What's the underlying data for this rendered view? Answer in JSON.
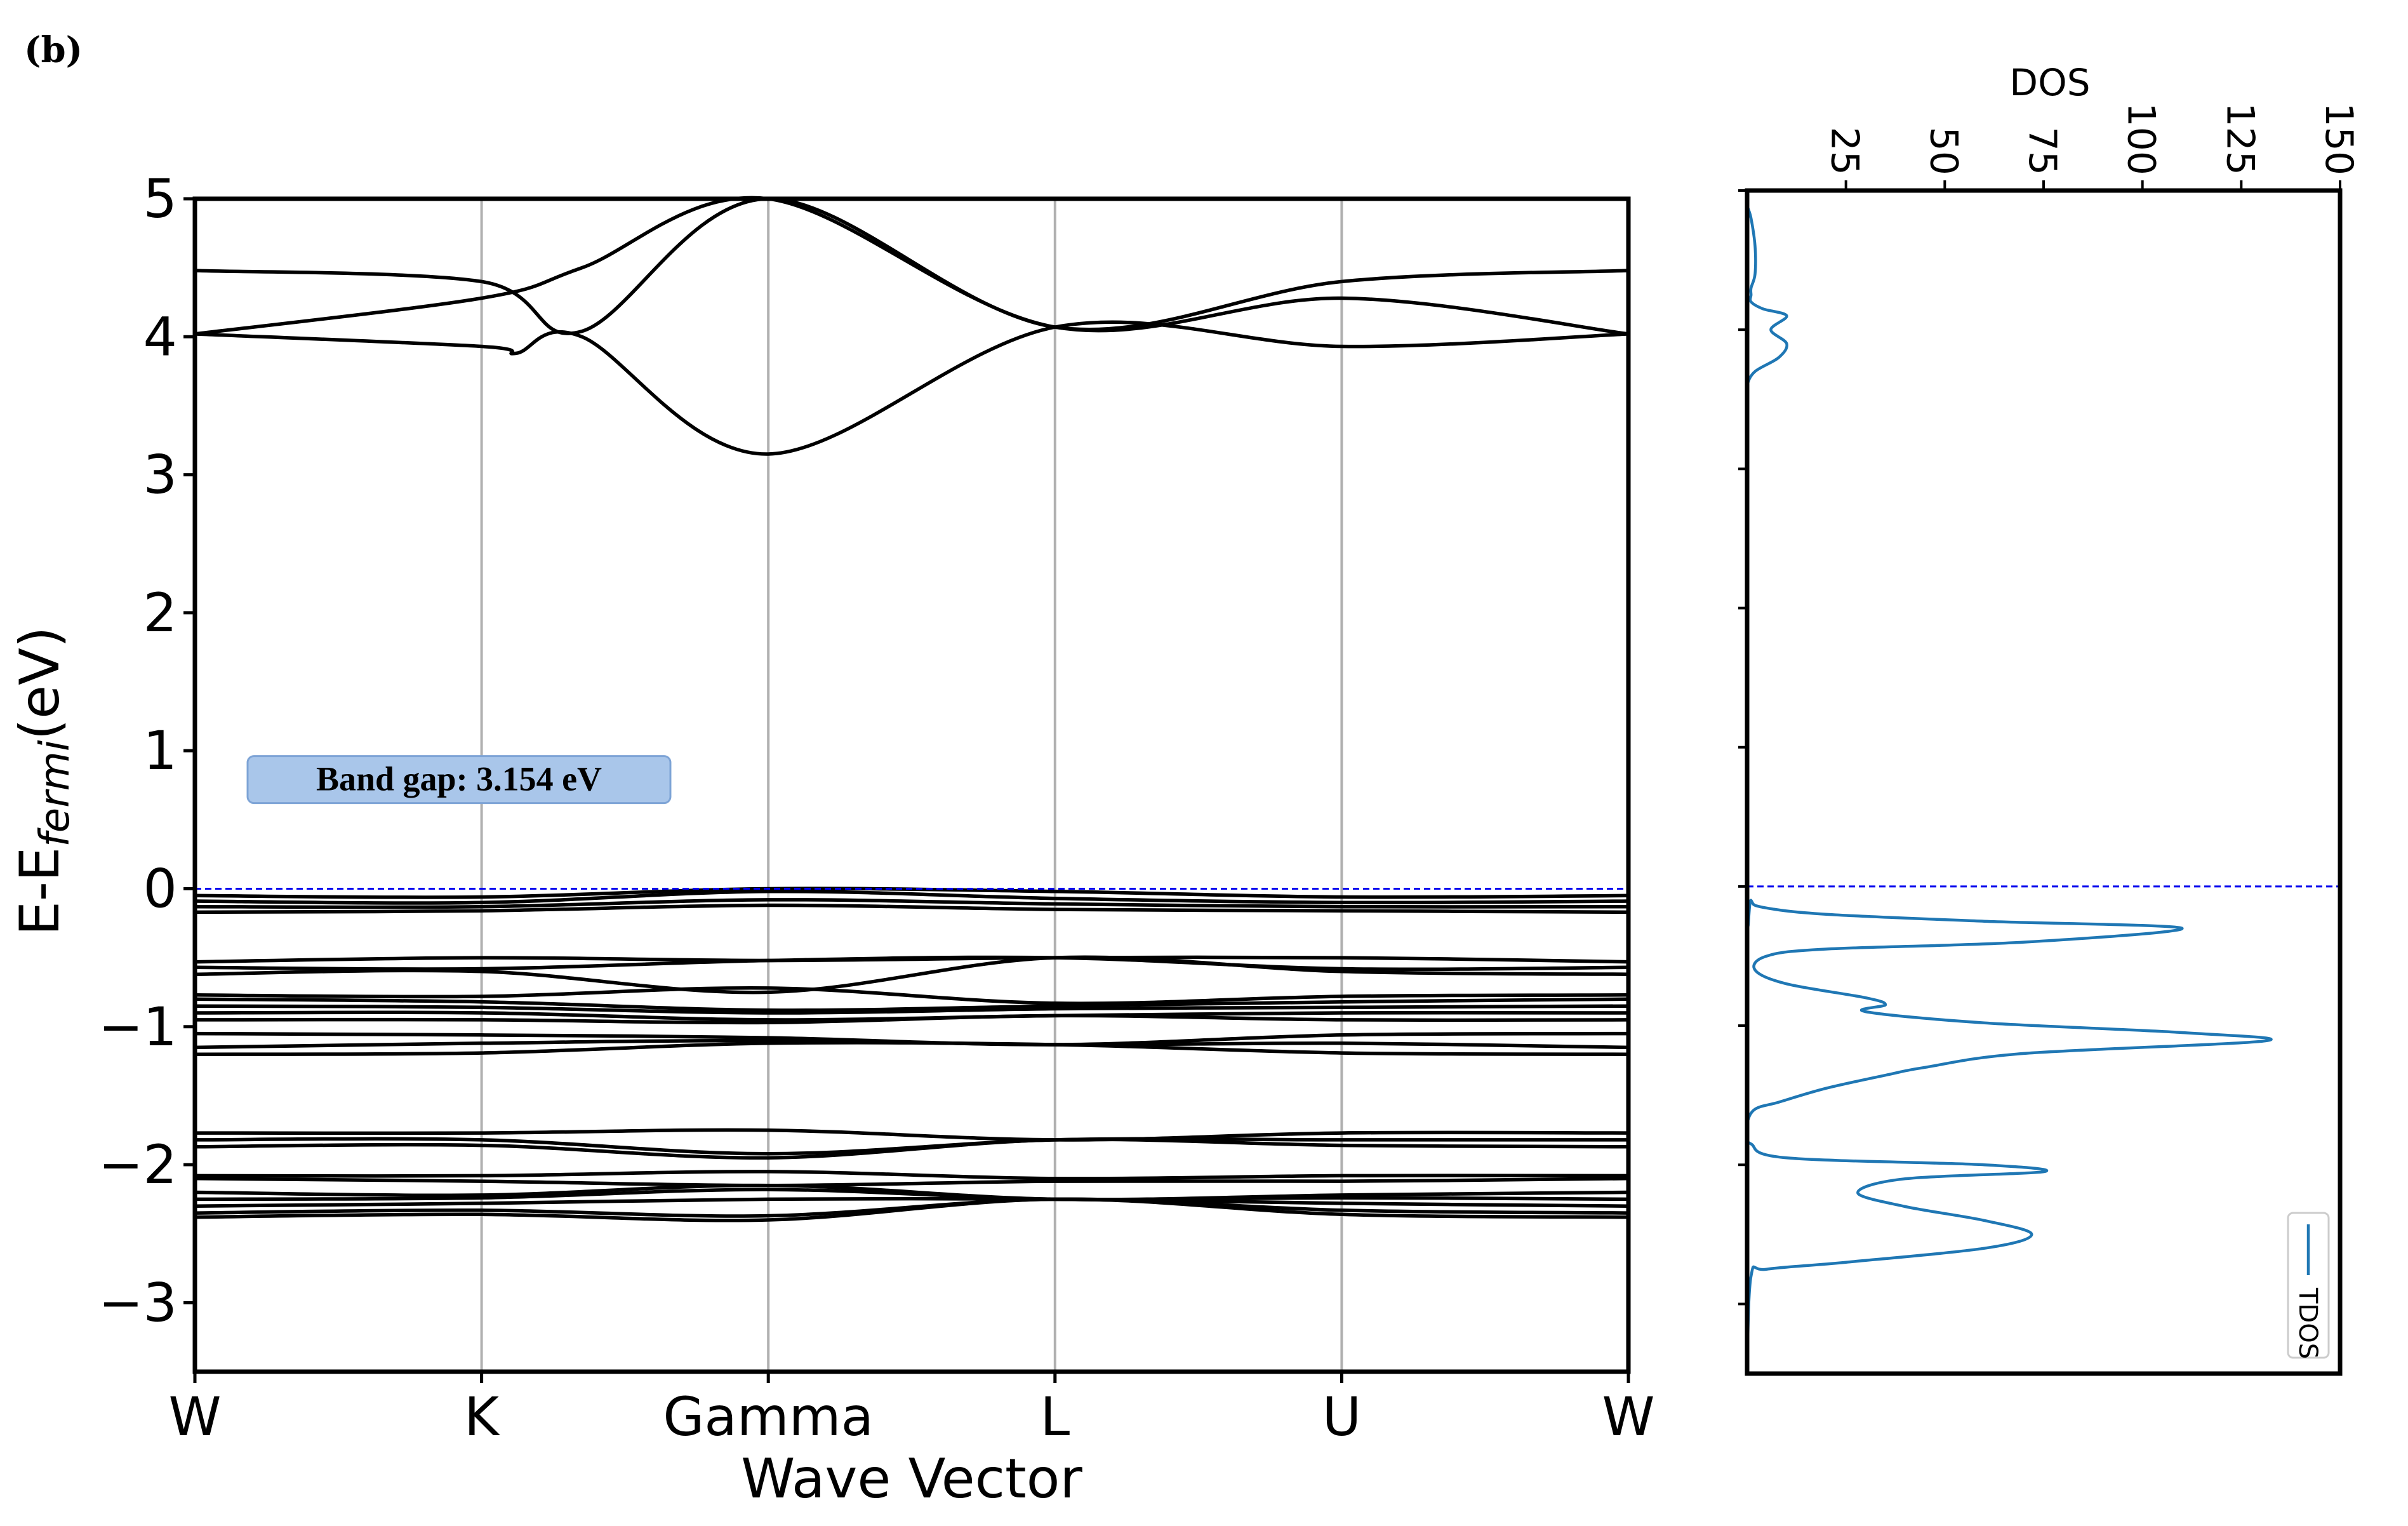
{
  "figure": {
    "panel_label": "(b)"
  },
  "chart_data": [
    {
      "type": "line",
      "panel": "band-structure",
      "xlabel": "Wave Vector",
      "ylabel_main": "E-E",
      "ylabel_sub": "fermi",
      "ylabel_unit": "(eV)",
      "ylim": [
        -3.5,
        5
      ],
      "yticks": [
        5,
        4,
        3,
        2,
        1,
        0,
        -1,
        -2,
        -3
      ],
      "ytick_labels": [
        "5",
        "4",
        "3",
        "2",
        "1",
        "0",
        "−1",
        "−2",
        "−3"
      ],
      "kpoints": [
        "W",
        "K",
        "Gamma",
        "L",
        "U",
        "W"
      ],
      "kpoint_positions": [
        0,
        1,
        2,
        3,
        4,
        5
      ],
      "grid": "vertical lines at high-symmetry points",
      "fermi_level": 0,
      "annotation": {
        "text": "Band gap:  3.154 eV",
        "x": 0.19,
        "y": 0.8
      },
      "bands": [
        {
          "x": [
            0,
            1,
            1.35,
            2,
            3,
            4,
            5
          ],
          "y": [
            4.02,
            4.28,
            4.5,
            5.0,
            4.07,
            4.28,
            4.02
          ]
        },
        {
          "x": [
            0,
            1,
            1.35,
            2,
            3,
            4,
            5
          ],
          "y": [
            4.48,
            4.4,
            4.04,
            5.0,
            4.07,
            4.4,
            4.48
          ]
        },
        {
          "x": [
            0,
            1,
            1.12,
            1.35,
            2,
            3,
            4,
            5
          ],
          "y": [
            4.02,
            3.93,
            3.88,
            4.0,
            3.15,
            4.07,
            3.93,
            4.02
          ]
        },
        {
          "x": [
            0,
            1,
            2,
            3,
            4,
            5
          ],
          "y": [
            -0.05,
            -0.06,
            0.0,
            -0.02,
            -0.06,
            -0.05
          ]
        },
        {
          "x": [
            0,
            1,
            2,
            3,
            4,
            5
          ],
          "y": [
            -0.09,
            -0.1,
            -0.02,
            -0.07,
            -0.1,
            -0.09
          ]
        },
        {
          "x": [
            0,
            1,
            2,
            3,
            4,
            5
          ],
          "y": [
            -0.13,
            -0.13,
            -0.08,
            -0.11,
            -0.13,
            -0.13
          ]
        },
        {
          "x": [
            0,
            1,
            2,
            3,
            4,
            5
          ],
          "y": [
            -0.17,
            -0.16,
            -0.12,
            -0.15,
            -0.16,
            -0.17
          ]
        },
        {
          "x": [
            0,
            1,
            2,
            3,
            4,
            5
          ],
          "y": [
            -0.53,
            -0.5,
            -0.52,
            -0.5,
            -0.5,
            -0.53
          ]
        },
        {
          "x": [
            0,
            1,
            2,
            3,
            4,
            5
          ],
          "y": [
            -0.57,
            -0.58,
            -0.52,
            -0.5,
            -0.58,
            -0.57
          ]
        },
        {
          "x": [
            0,
            1,
            2,
            3,
            4,
            5
          ],
          "y": [
            -0.62,
            -0.6,
            -0.75,
            -0.5,
            -0.6,
            -0.62
          ]
        },
        {
          "x": [
            0,
            1,
            2,
            3,
            4,
            5
          ],
          "y": [
            -0.77,
            -0.78,
            -0.72,
            -0.83,
            -0.78,
            -0.77
          ]
        },
        {
          "x": [
            0,
            1,
            2,
            3,
            4,
            5
          ],
          "y": [
            -0.8,
            -0.82,
            -0.88,
            -0.85,
            -0.82,
            -0.8
          ]
        },
        {
          "x": [
            0,
            1,
            2,
            3,
            4,
            5
          ],
          "y": [
            -0.85,
            -0.86,
            -0.9,
            -0.87,
            -0.86,
            -0.85
          ]
        },
        {
          "x": [
            0,
            1,
            2,
            3,
            4,
            5
          ],
          "y": [
            -0.9,
            -0.9,
            -0.95,
            -0.92,
            -0.9,
            -0.9
          ]
        },
        {
          "x": [
            0,
            1,
            2,
            3,
            4,
            5
          ],
          "y": [
            -0.95,
            -0.95,
            -0.97,
            -0.92,
            -0.95,
            -0.95
          ]
        },
        {
          "x": [
            0,
            1,
            2,
            3,
            4,
            5
          ],
          "y": [
            -1.05,
            -1.06,
            -1.08,
            -1.13,
            -1.06,
            -1.05
          ]
        },
        {
          "x": [
            0,
            1,
            2,
            3,
            4,
            5
          ],
          "y": [
            -1.15,
            -1.12,
            -1.1,
            -1.13,
            -1.12,
            -1.15
          ]
        },
        {
          "x": [
            0,
            1,
            2,
            3,
            4,
            5
          ],
          "y": [
            -1.2,
            -1.19,
            -1.12,
            -1.13,
            -1.19,
            -1.2
          ]
        },
        {
          "x": [
            0,
            1,
            2,
            3,
            4,
            5
          ],
          "y": [
            -1.77,
            -1.77,
            -1.75,
            -1.82,
            -1.77,
            -1.77
          ]
        },
        {
          "x": [
            0,
            1,
            2,
            3,
            4,
            5
          ],
          "y": [
            -1.82,
            -1.82,
            -1.92,
            -1.82,
            -1.82,
            -1.82
          ]
        },
        {
          "x": [
            0,
            1,
            2,
            3,
            4,
            5
          ],
          "y": [
            -1.87,
            -1.86,
            -1.95,
            -1.82,
            -1.86,
            -1.87
          ]
        },
        {
          "x": [
            0,
            1,
            2,
            3,
            4,
            5
          ],
          "y": [
            -2.08,
            -2.08,
            -2.05,
            -2.1,
            -2.08,
            -2.08
          ]
        },
        {
          "x": [
            0,
            1,
            2,
            3,
            4,
            5
          ],
          "y": [
            -2.1,
            -2.12,
            -2.15,
            -2.12,
            -2.12,
            -2.1
          ]
        },
        {
          "x": [
            0,
            1,
            2,
            3,
            4,
            5
          ],
          "y": [
            -2.2,
            -2.22,
            -2.15,
            -2.25,
            -2.22,
            -2.2
          ]
        },
        {
          "x": [
            0,
            1,
            2,
            3,
            4,
            5
          ],
          "y": [
            -2.25,
            -2.24,
            -2.18,
            -2.25,
            -2.24,
            -2.25
          ]
        },
        {
          "x": [
            0,
            1,
            2,
            3,
            4,
            5
          ],
          "y": [
            -2.3,
            -2.28,
            -2.25,
            -2.25,
            -2.28,
            -2.3
          ]
        },
        {
          "x": [
            0,
            1,
            2,
            3,
            4,
            5
          ],
          "y": [
            -2.35,
            -2.33,
            -2.37,
            -2.25,
            -2.33,
            -2.35
          ]
        },
        {
          "x": [
            0,
            1,
            2,
            3,
            4,
            5
          ],
          "y": [
            -2.38,
            -2.36,
            -2.4,
            -2.25,
            -2.36,
            -2.38
          ]
        }
      ]
    },
    {
      "type": "line",
      "panel": "dos",
      "xlabel": "DOS",
      "xlim": [
        0,
        150
      ],
      "xticks": [
        25,
        50,
        75,
        100,
        125,
        150
      ],
      "xtick_labels": [
        "25",
        "50",
        "75",
        "100",
        "125",
        "150"
      ],
      "xtick_rotation": "90",
      "ylim": [
        -3.5,
        5
      ],
      "fermi_level": 0,
      "legend": "bottom-right",
      "series_color": "#1f77b4",
      "series": [
        {
          "name": "TDOS",
          "x": [
            0,
            0,
            1,
            2,
            2,
            1,
            1,
            1,
            4,
            10,
            6,
            10,
            8,
            2,
            0,
            0,
            0,
            1,
            4,
            20,
            60,
            110,
            70,
            20,
            5,
            2,
            10,
            30,
            35,
            30,
            60,
            110,
            131,
            70,
            45,
            36,
            20,
            8,
            2,
            0,
            0,
            1,
            10,
            60,
            75,
            40,
            28,
            40,
            60,
            72,
            60,
            25,
            5,
            1,
            0
          ],
          "y": [
            5,
            4.9,
            4.8,
            4.6,
            4.4,
            4.3,
            4.25,
            4.2,
            4.15,
            4.1,
            4.0,
            3.9,
            3.8,
            3.7,
            3.6,
            3.5,
            0.0,
            -0.1,
            -0.15,
            -0.2,
            -0.25,
            -0.3,
            -0.4,
            -0.45,
            -0.5,
            -0.6,
            -0.7,
            -0.8,
            -0.85,
            -0.9,
            -0.98,
            -1.05,
            -1.11,
            -1.2,
            -1.3,
            -1.35,
            -1.45,
            -1.55,
            -1.6,
            -1.7,
            -1.8,
            -1.85,
            -1.95,
            -2.0,
            -2.05,
            -2.1,
            -2.2,
            -2.3,
            -2.4,
            -2.5,
            -2.6,
            -2.7,
            -2.75,
            -2.8,
            -3.5
          ]
        }
      ]
    }
  ]
}
